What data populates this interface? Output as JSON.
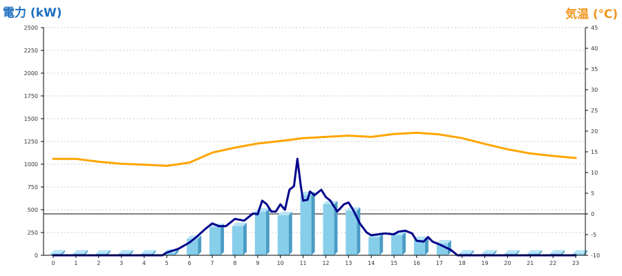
{
  "chart_data": {
    "type": "bar",
    "y_left_label": "電力 (kW)",
    "y_right_label": "気温 (℃)",
    "categories": [
      "0",
      "1",
      "2",
      "3",
      "4",
      "5",
      "6",
      "7",
      "8",
      "9",
      "10",
      "11",
      "12",
      "13",
      "14",
      "15",
      "16",
      "17",
      "18",
      "19",
      "20",
      "21",
      "22",
      "23"
    ],
    "ylim_left": [
      0,
      2500
    ],
    "ylim_right": [
      -10,
      45
    ],
    "yticks_left": [
      0,
      250,
      500,
      750,
      1000,
      1250,
      1500,
      1750,
      2000,
      2250,
      2500
    ],
    "yticks_right": [
      -10,
      -5,
      0,
      5,
      10,
      15,
      20,
      25,
      30,
      35,
      40,
      45
    ],
    "reference_line_right": 0,
    "grid": "horizontal dotted",
    "series": [
      {
        "kind": "bar",
        "axis": "left",
        "color": "#87ceeb",
        "values": [
          20,
          20,
          20,
          20,
          20,
          30,
          180,
          310,
          320,
          480,
          440,
          660,
          560,
          490,
          200,
          220,
          170,
          130,
          20,
          20,
          20,
          20,
          20,
          20
        ]
      },
      {
        "kind": "line",
        "axis": "left",
        "color": "#00008b",
        "points": [
          [
            0,
            0
          ],
          [
            1,
            0
          ],
          [
            2,
            0
          ],
          [
            3,
            0
          ],
          [
            4,
            0
          ],
          [
            4.8,
            0
          ],
          [
            5,
            30
          ],
          [
            5.5,
            70
          ],
          [
            6,
            140
          ],
          [
            6.3,
            200
          ],
          [
            6.7,
            290
          ],
          [
            7,
            350
          ],
          [
            7.3,
            320
          ],
          [
            7.6,
            320
          ],
          [
            8,
            400
          ],
          [
            8.4,
            380
          ],
          [
            8.8,
            460
          ],
          [
            9,
            450
          ],
          [
            9.2,
            600
          ],
          [
            9.4,
            560
          ],
          [
            9.6,
            480
          ],
          [
            9.8,
            480
          ],
          [
            10,
            560
          ],
          [
            10.2,
            500
          ],
          [
            10.4,
            720
          ],
          [
            10.6,
            760
          ],
          [
            10.75,
            1060
          ],
          [
            10.9,
            760
          ],
          [
            11.0,
            600
          ],
          [
            11.2,
            610
          ],
          [
            11.3,
            700
          ],
          [
            11.5,
            660
          ],
          [
            11.8,
            720
          ],
          [
            12,
            640
          ],
          [
            12.2,
            600
          ],
          [
            12.5,
            480
          ],
          [
            12.8,
            560
          ],
          [
            13,
            580
          ],
          [
            13.2,
            500
          ],
          [
            13.5,
            350
          ],
          [
            13.8,
            250
          ],
          [
            14,
            220
          ],
          [
            14.3,
            230
          ],
          [
            14.6,
            240
          ],
          [
            15,
            230
          ],
          [
            15.2,
            260
          ],
          [
            15.5,
            270
          ],
          [
            15.8,
            240
          ],
          [
            16,
            160
          ],
          [
            16.3,
            150
          ],
          [
            16.5,
            200
          ],
          [
            16.7,
            150
          ],
          [
            17,
            120
          ],
          [
            17.5,
            60
          ],
          [
            17.8,
            0
          ],
          [
            18,
            0
          ],
          [
            19,
            0
          ],
          [
            20,
            0
          ],
          [
            21,
            0
          ],
          [
            22,
            0
          ],
          [
            23,
            0
          ]
        ]
      },
      {
        "kind": "line",
        "axis": "right",
        "color": "#ffa500",
        "points": [
          [
            0,
            13.3
          ],
          [
            1,
            13.3
          ],
          [
            2,
            12.6
          ],
          [
            3,
            12.1
          ],
          [
            4,
            11.9
          ],
          [
            5,
            11.6
          ],
          [
            6,
            12.4
          ],
          [
            7,
            14.8
          ],
          [
            8,
            16.0
          ],
          [
            9,
            17.0
          ],
          [
            10,
            17.6
          ],
          [
            11,
            18.3
          ],
          [
            12,
            18.6
          ],
          [
            13,
            18.9
          ],
          [
            14,
            18.6
          ],
          [
            15,
            19.3
          ],
          [
            16,
            19.6
          ],
          [
            17,
            19.2
          ],
          [
            18,
            18.3
          ],
          [
            19,
            16.9
          ],
          [
            20,
            15.6
          ],
          [
            21,
            14.6
          ],
          [
            22,
            14.0
          ],
          [
            23,
            13.5
          ]
        ]
      }
    ]
  }
}
